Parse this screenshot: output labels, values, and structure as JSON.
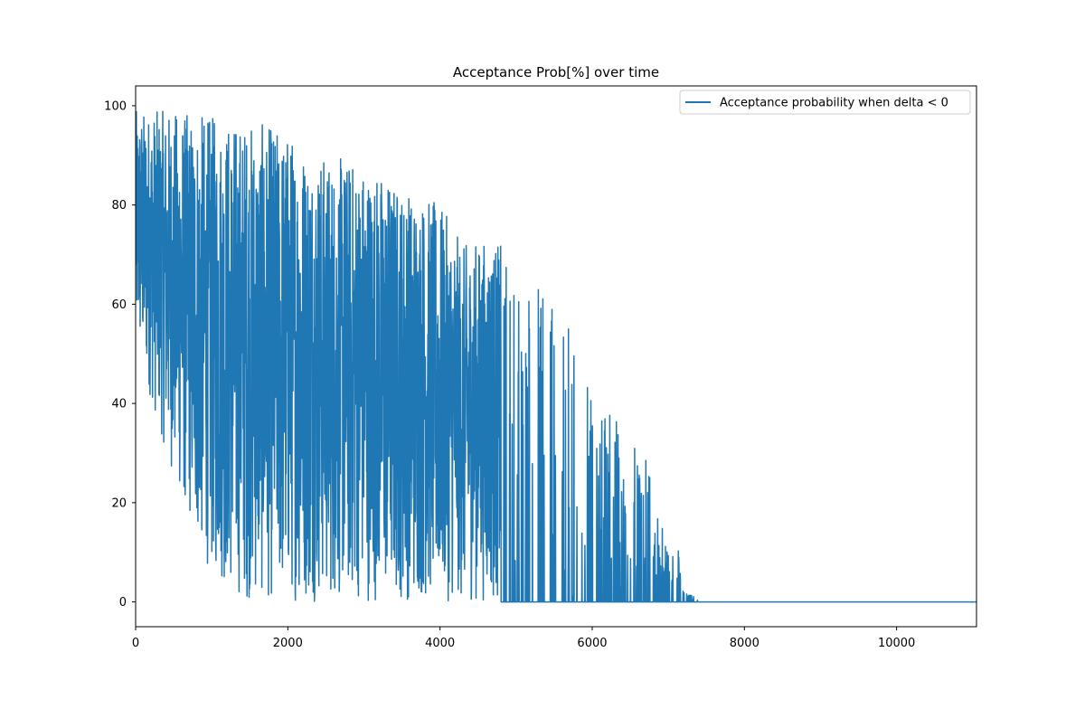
{
  "chart_data": {
    "type": "line",
    "title": "Acceptance Prob[%] over time",
    "xlabel": "",
    "ylabel": "",
    "xlim": [
      0,
      11050
    ],
    "ylim": [
      -5,
      104
    ],
    "xticks": [
      0,
      2000,
      4000,
      6000,
      8000,
      10000
    ],
    "xtick_labels": [
      "0",
      "2000",
      "4000",
      "6000",
      "8000",
      "10000"
    ],
    "yticks": [
      0,
      20,
      40,
      60,
      80,
      100
    ],
    "ytick_labels": [
      "0",
      "20",
      "40",
      "60",
      "80",
      "100"
    ],
    "grid": false,
    "legend": {
      "placement": "top-right"
    },
    "series": [
      {
        "name": "Acceptance probability when delta < 0",
        "color": "#1f77b4",
        "style": "line",
        "x_start": 0,
        "x_step": 1,
        "n_points": 11050,
        "upper_envelope": [
          [
            0,
            99
          ],
          [
            500,
            99
          ],
          [
            1000,
            98
          ],
          [
            1500,
            97
          ],
          [
            2000,
            95
          ],
          [
            2500,
            90
          ],
          [
            3000,
            89
          ],
          [
            3500,
            84
          ],
          [
            3700,
            83
          ],
          [
            4000,
            80
          ],
          [
            4300,
            72
          ],
          [
            4600,
            73
          ],
          [
            4800,
            72
          ],
          [
            5000,
            68
          ],
          [
            5400,
            64
          ],
          [
            5600,
            58
          ],
          [
            5900,
            49
          ],
          [
            6200,
            42
          ],
          [
            6500,
            33
          ],
          [
            6700,
            29
          ],
          [
            7000,
            10
          ],
          [
            7100,
            15
          ],
          [
            7200,
            2
          ],
          [
            7350,
            1
          ],
          [
            7400,
            0
          ],
          [
            11050,
            0
          ]
        ],
        "lower_envelope": [
          [
            0,
            52
          ],
          [
            300,
            35
          ],
          [
            600,
            20
          ],
          [
            900,
            8
          ],
          [
            1200,
            2
          ],
          [
            1500,
            0
          ],
          [
            11050,
            0
          ]
        ],
        "constant_after": {
          "x": 7400,
          "value": 0
        }
      }
    ]
  }
}
